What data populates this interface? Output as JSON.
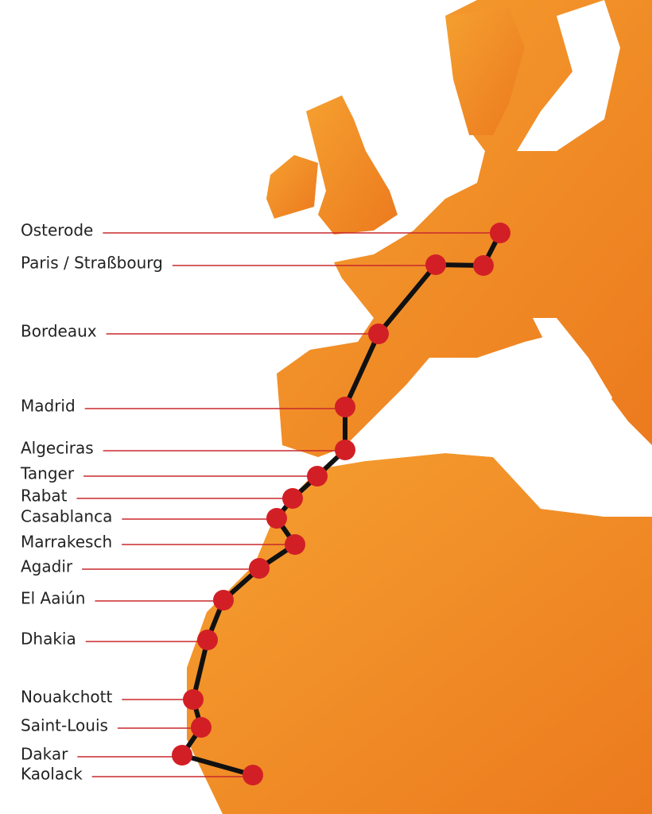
{
  "route": {
    "stops": [
      {
        "label": "Osterode"
      },
      {
        "label": "Paris / Straßbourg"
      },
      {
        "label": "Bordeaux"
      },
      {
        "label": "Madrid"
      },
      {
        "label": "Algeciras"
      },
      {
        "label": "Tanger"
      },
      {
        "label": "Rabat"
      },
      {
        "label": "Casablanca"
      },
      {
        "label": "Marrakesch"
      },
      {
        "label": "Agadir"
      },
      {
        "label": "El Aaiún"
      },
      {
        "label": "Dhakia"
      },
      {
        "label": "Nouakchott"
      },
      {
        "label": "Saint-Louis"
      },
      {
        "label": "Dakar"
      },
      {
        "label": "Kaolack"
      }
    ]
  }
}
